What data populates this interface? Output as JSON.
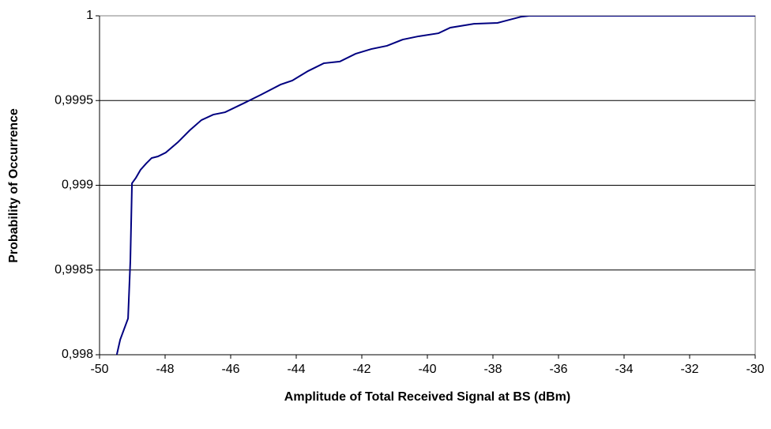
{
  "chart_data": {
    "type": "line",
    "xlabel": "Amplitude of Total Received Signal at BS (dBm)",
    "ylabel": "Probability of Occurrence",
    "xlim": [
      -50,
      -30
    ],
    "xticks": [
      -50,
      -48,
      -46,
      -44,
      -42,
      -40,
      -38,
      -36,
      -34,
      -32,
      -30
    ],
    "ylim": [
      0.998,
      1
    ],
    "yticks": [
      {
        "value": 0.998,
        "label": "0,998"
      },
      {
        "value": 0.9985,
        "label": "0,9985"
      },
      {
        "value": 0.999,
        "label": "0,999"
      },
      {
        "value": 0.9995,
        "label": "0,9995"
      },
      1
    ],
    "grid": true,
    "series": [
      {
        "color": "#000080",
        "x": [
          -49.52,
          -49.37,
          -49.13,
          -49.06,
          -49.01,
          -48.89,
          -48.75,
          -48.58,
          -48.41,
          -48.22,
          -47.98,
          -47.61,
          -47.25,
          -46.89,
          -46.53,
          -46.17,
          -45.57,
          -45.08,
          -44.48,
          -44.12,
          -43.64,
          -43.16,
          -42.67,
          -42.19,
          -41.71,
          -41.23,
          -40.75,
          -40.27,
          -39.66,
          -39.3,
          -38.58,
          -37.86,
          -37.13,
          -36.89,
          -30
        ],
        "values": [
          0.99796,
          0.998089,
          0.998214,
          0.998555,
          0.999012,
          0.999044,
          0.999091,
          0.999128,
          0.999161,
          0.99917,
          0.999193,
          0.999254,
          0.999324,
          0.999385,
          0.999417,
          0.999431,
          0.999487,
          0.999534,
          0.999594,
          0.999618,
          0.999674,
          0.99972,
          0.99973,
          0.999776,
          0.999804,
          0.999823,
          0.99986,
          0.999879,
          0.999897,
          0.99993,
          0.999953,
          0.999958,
          0.999995,
          1,
          1
        ]
      }
    ]
  }
}
